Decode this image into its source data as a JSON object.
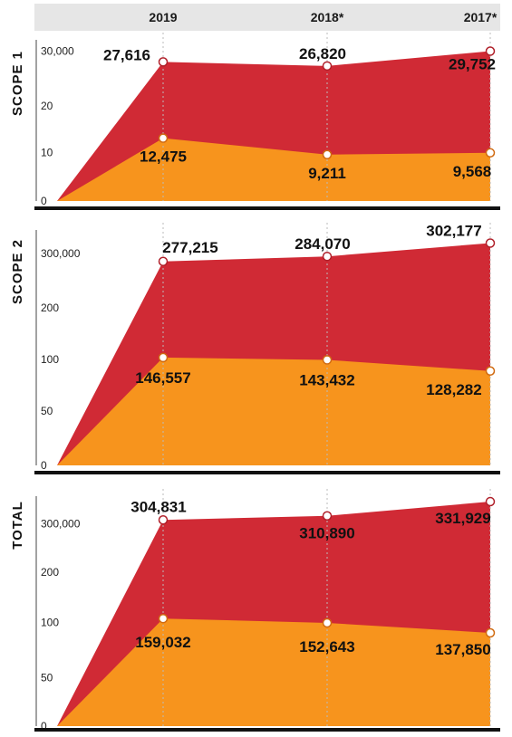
{
  "colors": {
    "header_bg": "#e6e6e6",
    "upper_area": "#d02a35",
    "lower_area": "#f7941d",
    "marker_fill": "#ffffff",
    "text": "#111111",
    "divider": "#111111",
    "gridline": "#bbbbbb"
  },
  "years": [
    "2019",
    "2018*",
    "2017*"
  ],
  "chart_data": [
    {
      "type": "area",
      "title": "SCOPE 1",
      "x": [
        "2019",
        "2018*",
        "2017*"
      ],
      "y_ticks": [
        "0",
        "10",
        "20",
        "30,000"
      ],
      "ylim": [
        0,
        32000
      ],
      "series": [
        {
          "values": [
            27616,
            26820,
            29752
          ],
          "labels": [
            "27,616",
            "26,820",
            "29,752"
          ],
          "color": "#d02a35"
        },
        {
          "values": [
            12475,
            9211,
            9568
          ],
          "labels": [
            "12,475",
            "9,211",
            "9,568"
          ],
          "color": "#f7941d"
        }
      ]
    },
    {
      "type": "area",
      "title": "SCOPE 2",
      "x": [
        "2019",
        "2018*",
        "2017*"
      ],
      "y_ticks": [
        "0",
        "50",
        "100",
        "200",
        "300,000"
      ],
      "ylim": [
        0,
        320000
      ],
      "series": [
        {
          "values": [
            277215,
            284070,
            302177
          ],
          "labels": [
            "277,215",
            "284,070",
            "302,177"
          ],
          "color": "#d02a35"
        },
        {
          "values": [
            146557,
            143432,
            128282
          ],
          "labels": [
            "146,557",
            "143,432",
            "128,282"
          ],
          "color": "#f7941d"
        }
      ]
    },
    {
      "type": "area",
      "title": "TOTAL",
      "x": [
        "2019",
        "2018*",
        "2017*"
      ],
      "y_ticks": [
        "0",
        "50",
        "100",
        "200",
        "300,000"
      ],
      "ylim": [
        0,
        340000
      ],
      "series": [
        {
          "values": [
            304831,
            310890,
            331929
          ],
          "labels": [
            "304,831",
            "310,890",
            "331,929"
          ],
          "color": "#d02a35"
        },
        {
          "values": [
            159032,
            152643,
            137850
          ],
          "labels": [
            "159,032",
            "152,643",
            "137,850"
          ],
          "color": "#f7941d"
        }
      ]
    }
  ]
}
